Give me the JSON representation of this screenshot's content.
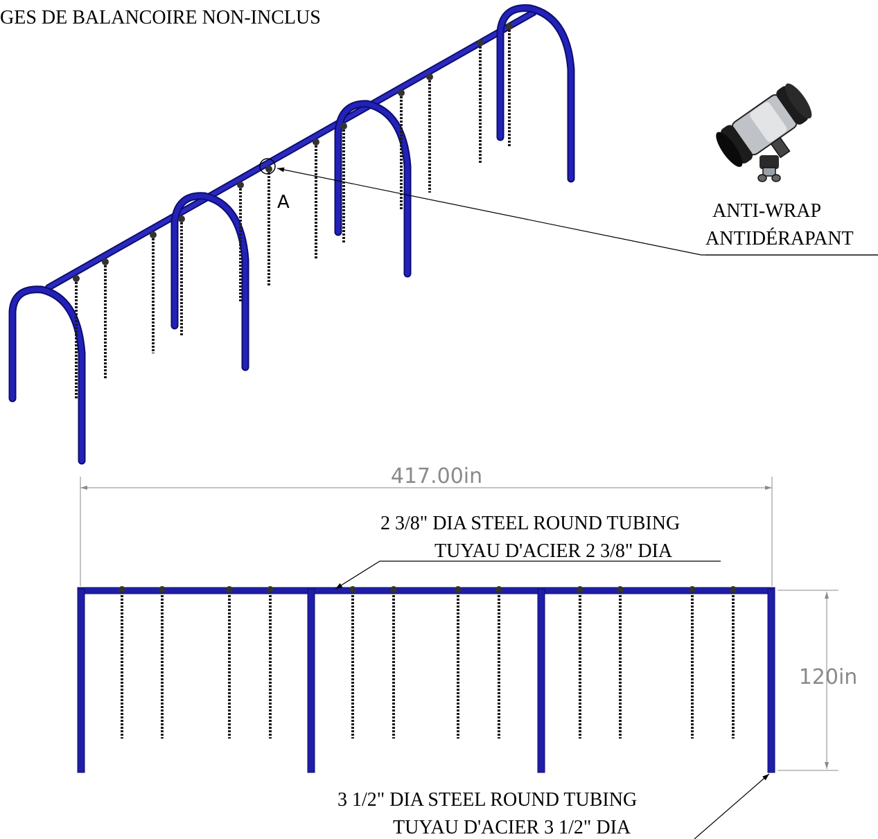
{
  "notes": {
    "seats_not_included": "GES DE BALANCOIRE NON-INCLUS"
  },
  "detail": {
    "callout_letter": "A",
    "label_en": "ANTI-WRAP",
    "label_fr": "ANTIDÉRAPANT"
  },
  "dimensions": {
    "overall_length": "417.00in",
    "height": "120in"
  },
  "tubing": {
    "top_en": "2 3/8\" DIA STEEL ROUND TUBING",
    "top_fr": "TUYAU D'ACIER 2 3/8\" DIA",
    "leg_en": "3 1/2\" DIA STEEL ROUND TUBING",
    "leg_fr": "TUYAU D'ACIER 3 1/2\" DIA"
  },
  "colors": {
    "frame": "#1e1ea8",
    "frame_dark": "#0d0d6e",
    "chain": "#1a1a1a",
    "dimension_line": "#8a8a8a"
  }
}
